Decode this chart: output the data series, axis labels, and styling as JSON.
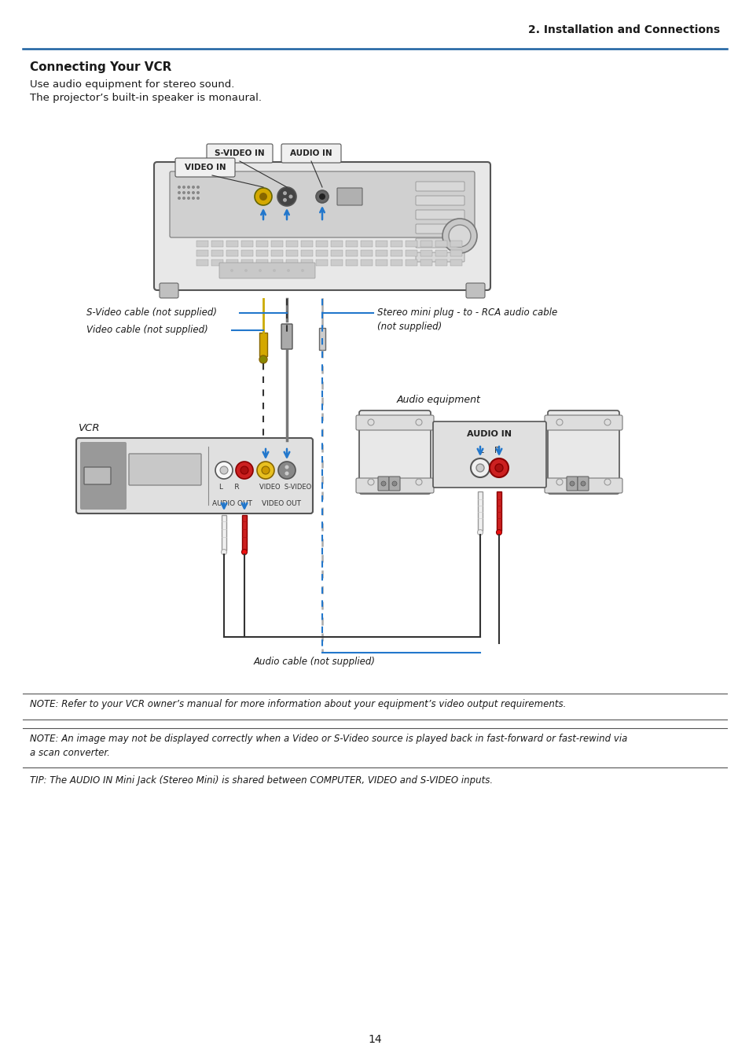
{
  "page_title": "2. Installation and Connections",
  "section_title": "Connecting Your VCR",
  "intro_line1": "Use audio equipment for stereo sound.",
  "intro_line2": "The projector’s built-in speaker is monaural.",
  "note1": "NOTE: Refer to your VCR owner’s manual for more information about your equipment’s video output requirements.",
  "note2": "NOTE: An image may not be displayed correctly when a Video or S-Video source is played back in fast-forward or fast-rewind via",
  "note2b": "a scan converter.",
  "tip": "TIP: The AUDIO IN Mini Jack (Stereo Mini) is shared between COMPUTER, VIDEO and S-VIDEO inputs.",
  "label_svideo_in": "S-VIDEO IN",
  "label_video_in": "VIDEO IN",
  "label_audio_in": "AUDIO IN",
  "label_svideo_cable": "S-Video cable (not supplied)",
  "label_video_cable": "Video cable (not supplied)",
  "label_vcr": "VCR",
  "label_audio_eq": "Audio equipment",
  "label_stereo": "Stereo mini plug - to - RCA audio cable",
  "label_stereo2": "(not supplied)",
  "label_audio_cable": "Audio cable (not supplied)",
  "label_audio_out": "AUDIO OUT",
  "label_video_out": "VIDEO OUT",
  "label_audio_in_eq": "AUDIO IN",
  "label_l": "L",
  "label_r": "R",
  "label_video": "VIDEO",
  "label_svideo": "S-VIDEO",
  "page_number": "14",
  "bg_color": "#ffffff",
  "header_line_color": "#1a5fa0",
  "blue_arrow_color": "#2277cc",
  "yellow_color": "#e8c020",
  "red_color": "#cc2020",
  "dark": "#222222",
  "mid_gray": "#888888",
  "light_gray": "#cccccc",
  "proj_body": "#e8e8e8",
  "proj_edge": "#555555"
}
